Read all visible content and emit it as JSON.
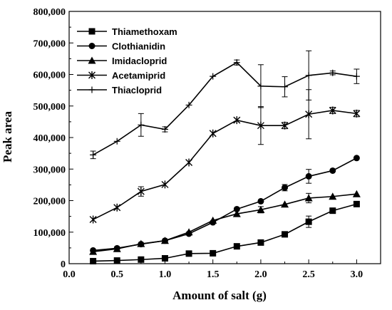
{
  "chart_data": {
    "type": "line",
    "xlabel": "Amount of salt (g)",
    "ylabel": "Peak area",
    "xlim": [
      0.0,
      3.25
    ],
    "ylim": [
      0,
      800000
    ],
    "x_ticks": [
      0.0,
      0.5,
      1.0,
      1.5,
      2.0,
      2.5,
      3.0
    ],
    "x_tick_labels": [
      "0.0",
      "0.5",
      "1.0",
      "1.5",
      "2.0",
      "2.5",
      "3.0"
    ],
    "y_ticks": [
      0,
      100000,
      200000,
      300000,
      400000,
      500000,
      600000,
      700000,
      800000
    ],
    "y_tick_labels": [
      "0",
      "100,000",
      "200,000",
      "300,000",
      "400,000",
      "500,000",
      "600,000",
      "700,000",
      "800,000"
    ],
    "legend_position": "top-left",
    "grid": false,
    "x": [
      0.25,
      0.5,
      0.75,
      1.0,
      1.25,
      1.5,
      1.75,
      2.0,
      2.25,
      2.5,
      2.75,
      3.0
    ],
    "series": [
      {
        "name": "Thiamethoxam",
        "marker": "square",
        "values": [
          8000,
          10000,
          13000,
          17000,
          32000,
          33000,
          55000,
          67000,
          93000,
          133000,
          168000,
          189000
        ],
        "errors": [
          0,
          0,
          0,
          0,
          0,
          0,
          0,
          0,
          0,
          18000,
          0,
          0
        ]
      },
      {
        "name": "Clothianidin",
        "marker": "circle",
        "values": [
          42000,
          49000,
          62000,
          73000,
          95000,
          131000,
          173000,
          198000,
          241000,
          277000,
          295000,
          335000
        ],
        "errors": [
          0,
          0,
          0,
          0,
          0,
          0,
          0,
          0,
          10000,
          22000,
          0,
          0
        ]
      },
      {
        "name": "Imidacloprid",
        "marker": "triangle",
        "values": [
          38000,
          47000,
          63000,
          73000,
          100000,
          137000,
          158000,
          171000,
          188000,
          208000,
          213000,
          221000
        ],
        "errors": [
          0,
          0,
          0,
          0,
          0,
          0,
          0,
          10000,
          0,
          15000,
          0,
          0
        ]
      },
      {
        "name": "Acetamiprid",
        "marker": "x-star",
        "values": [
          140000,
          178000,
          229000,
          251000,
          321000,
          413000,
          455000,
          438000,
          438000,
          474000,
          486000,
          476000
        ],
        "errors": [
          0,
          0,
          15000,
          0,
          0,
          0,
          0,
          60000,
          10000,
          78000,
          10000,
          10000
        ]
      },
      {
        "name": "Thiacloprid",
        "marker": "plus",
        "values": [
          345000,
          388000,
          440000,
          426000,
          503000,
          594000,
          638000,
          563000,
          561000,
          597000,
          605000,
          594000
        ],
        "errors": [
          12000,
          0,
          36000,
          8000,
          0,
          0,
          8000,
          68000,
          32000,
          78000,
          6000,
          23000
        ]
      }
    ]
  },
  "colors": {
    "line": "#000000",
    "background": "#ffffff"
  }
}
